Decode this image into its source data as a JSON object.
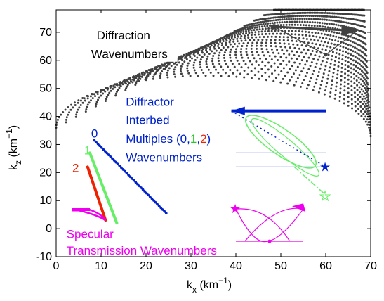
{
  "chart_data": {
    "type": "scatter",
    "xlim": [
      0,
      70
    ],
    "ylim": [
      -10,
      78
    ],
    "xticks": [
      0,
      10,
      20,
      30,
      40,
      50,
      60,
      70
    ],
    "yticks": [
      -10,
      0,
      10,
      20,
      30,
      40,
      50,
      60,
      70
    ],
    "xlabel_main": "k",
    "xlabel_sub": "x",
    "xlabel_units": " (km",
    "xlabel_sup": "−1",
    "xlabel_close": ")",
    "ylabel_main": "k",
    "ylabel_sub": "z",
    "ylabel_units": " (km",
    "ylabel_sup": "−1",
    "ylabel_close": ")",
    "colors": {
      "diffraction": "#404040",
      "order0": "#0022cc",
      "order1": "#66ee66",
      "order2": "#ee2200",
      "specular": "#ee00ee"
    },
    "annotations": {
      "diffraction": [
        "Diffraction",
        "Wavenumbers"
      ],
      "diffractor_line1": "Diffractor",
      "diffractor_line2": "Interbed",
      "multiples_prefix": "Multiples (",
      "m0": "0",
      "comma1": ",",
      "m1": "1",
      "comma2": ",",
      "m2": "2",
      "multiples_suffix": ")",
      "diffractor_line4": "Wavenumbers",
      "label0": "0",
      "label1": "1",
      "label2": "2",
      "specular_line1": "Specular",
      "specular_line2": "Transmission Wavenumbers"
    },
    "series": [
      {
        "key": "order0",
        "points": [
          [
            8.5,
            31.5
          ],
          [
            24.5,
            5.5
          ]
        ]
      },
      {
        "key": "order1",
        "points": [
          [
            7.5,
            27
          ],
          [
            13.5,
            2
          ]
        ]
      },
      {
        "key": "order2",
        "points": [
          [
            7,
            22
          ],
          [
            11,
            3
          ]
        ]
      }
    ]
  }
}
